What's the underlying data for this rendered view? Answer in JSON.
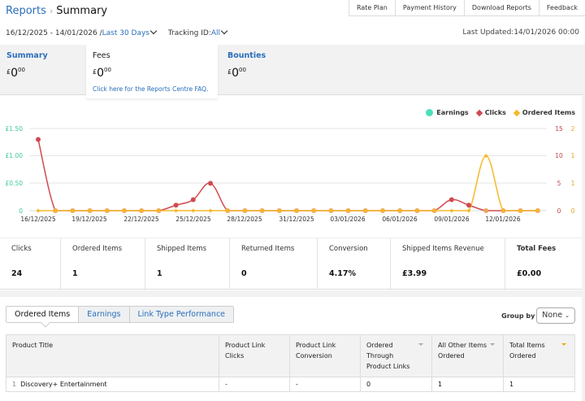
{
  "topnav": [
    "Rate Plan",
    "Payment History",
    "Download Reports",
    "Feedback"
  ],
  "breadcrumb": {
    "parent": "Reports",
    "separator": "›",
    "current": "Summary"
  },
  "date_range": {
    "range": "16/12/2025 - 14/01/2026 /",
    "preset": "Last 30 Days",
    "tracking_label": "Tracking ID:",
    "tracking_value": "All"
  },
  "last_updated": "Last Updated:14/01/2026 00:00",
  "summary_cards": [
    {
      "title": "Summary",
      "currency": "£",
      "whole": "0",
      "fraction": "00"
    },
    {
      "title": "Fees",
      "currency": "£",
      "whole": "0",
      "fraction": "00",
      "faq": "Click here for the Reports Centre FAQ."
    },
    {
      "title": "Bounties",
      "currency": "£",
      "whole": "0",
      "fraction": "00"
    }
  ],
  "legend": {
    "earnings": "Earnings",
    "clicks": "Clicks",
    "ordered": "Ordered Items"
  },
  "colors": {
    "earnings": "#4ddfb7",
    "clicks": "#d04a50",
    "ordered": "#f5b92a",
    "link": "#2a6ebb"
  },
  "chart_data": {
    "type": "line",
    "title": "",
    "x": [
      "16/12/2025",
      "17/12/2025",
      "18/12/2025",
      "19/12/2025",
      "20/12/2025",
      "21/12/2025",
      "22/12/2025",
      "23/12/2025",
      "24/12/2025",
      "25/12/2025",
      "26/12/2025",
      "27/12/2025",
      "28/12/2025",
      "29/12/2025",
      "30/12/2025",
      "31/12/2025",
      "01/01/2026",
      "02/01/2026",
      "03/01/2026",
      "04/01/2026",
      "05/01/2026",
      "06/01/2026",
      "07/01/2026",
      "08/01/2026",
      "09/01/2026",
      "10/01/2026",
      "11/01/2026",
      "12/01/2026",
      "13/01/2026",
      "14/01/2026"
    ],
    "x_tick_labels": [
      "16/12/2025",
      "19/12/2025",
      "22/12/2025",
      "25/12/2025",
      "28/12/2025",
      "31/12/2025",
      "03/01/2026",
      "06/01/2026",
      "09/01/2026",
      "12/01/2026"
    ],
    "series": [
      {
        "name": "Earnings",
        "axis": "left",
        "values": [
          0,
          0,
          0,
          0,
          0,
          0,
          0,
          0,
          0,
          0,
          0,
          0,
          0,
          0,
          0,
          0,
          0,
          0,
          0,
          0,
          0,
          0,
          0,
          0,
          0,
          0,
          0,
          0,
          0,
          0
        ]
      },
      {
        "name": "Clicks",
        "axis": "right1",
        "values": [
          13,
          0,
          0,
          0,
          0,
          0,
          0,
          0,
          1,
          2,
          5,
          0,
          0,
          0,
          0,
          0,
          0,
          0,
          0,
          0,
          0,
          0,
          0,
          0,
          2,
          1,
          0,
          0,
          0,
          0
        ]
      },
      {
        "name": "Ordered Items",
        "axis": "right2",
        "values": [
          0,
          0,
          0,
          0,
          0,
          0,
          0,
          0,
          0,
          0,
          0,
          0,
          0,
          0,
          0,
          0,
          0,
          0,
          0,
          0,
          0,
          0,
          0,
          0,
          0,
          0,
          1,
          0,
          0,
          0
        ]
      }
    ],
    "y_left": {
      "ticks": [
        "0",
        "£0.50",
        "£1.00",
        "£1.50"
      ],
      "range": [
        0,
        1.5
      ]
    },
    "y_right_clicks": {
      "ticks": [
        "0",
        "5",
        "10",
        "15"
      ],
      "range": [
        0,
        15
      ]
    },
    "y_right_ordered": {
      "ticks": [
        "0",
        "1",
        "1",
        "2"
      ],
      "range": [
        0,
        1.5
      ]
    },
    "grid": true,
    "legend_position": "top-right"
  },
  "metrics": [
    {
      "label": "Clicks",
      "value": "24"
    },
    {
      "label": "Ordered Items",
      "value": "1"
    },
    {
      "label": "Shipped Items",
      "value": "1"
    },
    {
      "label": "Returned Items",
      "value": "0"
    },
    {
      "label": "Conversion",
      "value": "4.17%"
    },
    {
      "label": "Shipped Items Revenue",
      "value": "£3.99"
    },
    {
      "label": "Total Fees",
      "value": "£0.00"
    }
  ],
  "tabs": [
    "Ordered Items",
    "Earnings",
    "Link Type Performance"
  ],
  "group_by": {
    "label": "Group by",
    "value": "None"
  },
  "table": {
    "headers": [
      "Product Title",
      "Product Link Clicks",
      "Product Link Conversion",
      "Ordered Through Product Links",
      "All Other Items Ordered",
      "Total Items Ordered"
    ],
    "rows": [
      {
        "index": "1",
        "cells": [
          "Discovery+ Entertainment",
          "-",
          "-",
          "0",
          "1",
          "1"
        ]
      }
    ]
  }
}
